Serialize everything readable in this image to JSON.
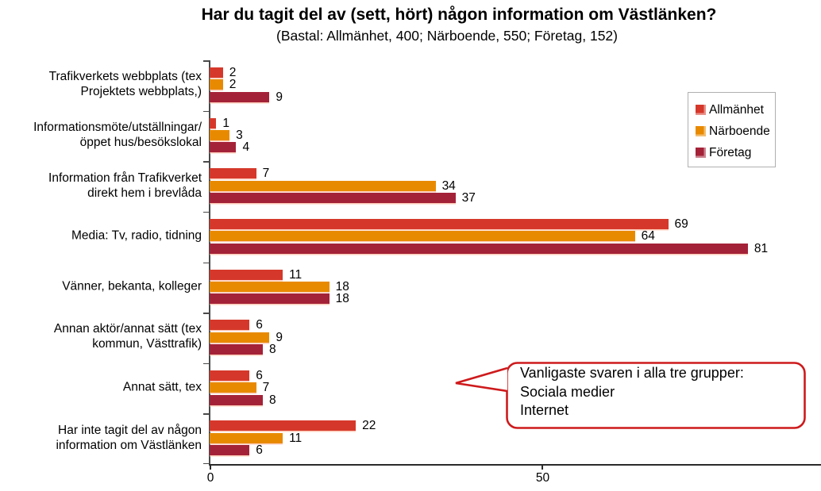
{
  "title": "Har du tagit del av (sett, hört) någon information om Västlänken?",
  "subtitle": "(Bastal: Allmänhet, 400; Närboende, 550; Företag, 152)",
  "legend": {
    "items": [
      {
        "label": "Allmänhet",
        "color": "#D5382A"
      },
      {
        "label": "Närboende",
        "color": "#E88A00"
      },
      {
        "label": "Företag",
        "color": "#A42238"
      }
    ]
  },
  "callout": {
    "text": "Vanligaste svaren i alla tre grupper:\nSociala medier\nInternet",
    "border_color": "#CE1A1C"
  },
  "chart_data": {
    "type": "bar",
    "orientation": "horizontal",
    "title": "Har du tagit del av (sett, hört) någon information om Västlänken?",
    "subtitle": "(Bastal: Allmänhet, 400; Närboende, 550; Företag, 152)",
    "categories": [
      "Trafikverkets webbplats (tex\nProjektets webbplats,)",
      "Informationsmöte/utställningar/\nöppet hus/besökslokal",
      "Information från Trafikverket\ndirekt hem i brevlåda",
      "Media: Tv, radio, tidning",
      "Vänner, bekanta, kolleger",
      "Annan aktör/annat sätt (tex\nkommun, Västtrafik)",
      "Annat sätt, tex",
      "Har inte tagit del av någon\ninformation om Västlänken"
    ],
    "series": [
      {
        "name": "Allmänhet",
        "color": "#D5382A",
        "values": [
          2,
          1,
          7,
          69,
          11,
          6,
          6,
          22
        ]
      },
      {
        "name": "Närboende",
        "color": "#E88A00",
        "values": [
          2,
          3,
          34,
          64,
          18,
          9,
          7,
          11
        ]
      },
      {
        "name": "Företag",
        "color": "#A42238",
        "values": [
          9,
          4,
          37,
          81,
          18,
          8,
          8,
          6
        ]
      }
    ],
    "xlim": [
      0,
      92
    ],
    "x_ticks": [
      0,
      50
    ],
    "value_labels": true,
    "grid": false,
    "legend_position": "top-right"
  }
}
